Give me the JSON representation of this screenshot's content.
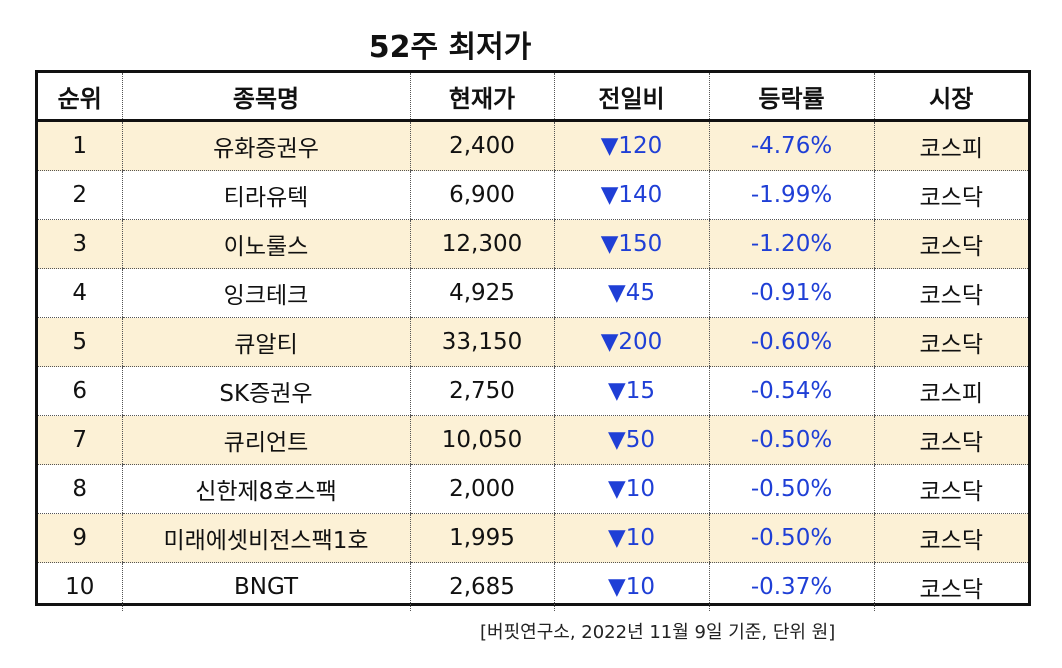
{
  "title": "52주 최저가",
  "headers": [
    "순위",
    "종목명",
    "현재가",
    "전일비",
    "등락률",
    "시장"
  ],
  "rows": [
    {
      "rank": "1",
      "name": "유화증권우",
      "price": "2,400",
      "change": "▼120",
      "rate": "-4.76%",
      "market": "코스피"
    },
    {
      "rank": "2",
      "name": "티라유텍",
      "price": "6,900",
      "change": "▼140",
      "rate": "-1.99%",
      "market": "코스닥"
    },
    {
      "rank": "3",
      "name": "이노룰스",
      "price": "12,300",
      "change": "▼150",
      "rate": "-1.20%",
      "market": "코스닥"
    },
    {
      "rank": "4",
      "name": "잉크테크",
      "price": "4,925",
      "change": "▼45",
      "rate": "-0.91%",
      "market": "코스닥"
    },
    {
      "rank": "5",
      "name": "큐알티",
      "price": "33,150",
      "change": "▼200",
      "rate": "-0.60%",
      "market": "코스닥"
    },
    {
      "rank": "6",
      "name": "SK증권우",
      "price": "2,750",
      "change": "▼15",
      "rate": "-0.54%",
      "market": "코스피"
    },
    {
      "rank": "7",
      "name": "큐리언트",
      "price": "10,050",
      "change": "▼50",
      "rate": "-0.50%",
      "market": "코스닥"
    },
    {
      "rank": "8",
      "name": "신한제8호스팩",
      "price": "2,000",
      "change": "▼10",
      "rate": "-0.50%",
      "market": "코스닥"
    },
    {
      "rank": "9",
      "name": "미래에셋비전스팩1호",
      "price": "1,995",
      "change": "▼10",
      "rate": "-0.50%",
      "market": "코스닥"
    },
    {
      "rank": "10",
      "name": "BNGT",
      "price": "2,685",
      "change": "▼10",
      "rate": "-0.37%",
      "market": "코스닥"
    }
  ],
  "source": "[버핏연구소, 2022년 11월 9일 기준, 단위 원]",
  "colors": {
    "down": "#1f3fd6",
    "stripe": "#fcf1d6",
    "border": "#111111"
  }
}
